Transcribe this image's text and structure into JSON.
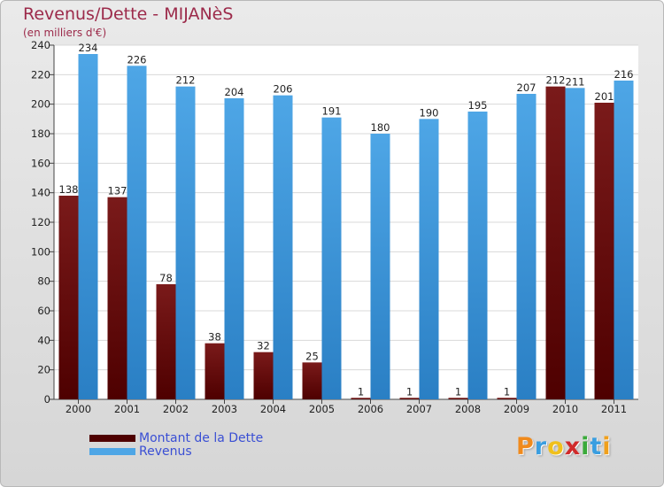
{
  "colors": {
    "debt": "#7a1a1a",
    "debt_dark": "#4e0000",
    "revenue": "#4ea6e6",
    "revenue_dark": "#2a7fc4",
    "title": "#9c2a4a",
    "legend_text": "#3a4fd4"
  },
  "logo": {
    "letters": [
      "P",
      "r",
      "o",
      "x",
      "i",
      "t",
      "i"
    ],
    "colors": [
      "#f08a1c",
      "#3a9ee0",
      "#f0c01c",
      "#d02a2a",
      "#3aaa3a",
      "#3a9ee0",
      "#f0a01c"
    ]
  },
  "chart_data": {
    "type": "bar",
    "title": "Revenus/Dette - MIJANèS",
    "subtitle": "(en milliers d'€)",
    "xlabel": "",
    "ylabel": "",
    "ylim": [
      0,
      240
    ],
    "yticks": [
      0,
      20,
      40,
      60,
      80,
      100,
      120,
      140,
      160,
      180,
      200,
      220,
      240
    ],
    "grid": true,
    "legend_placement": "bottom-left",
    "categories": [
      "2000",
      "2001",
      "2002",
      "2003",
      "2004",
      "2005",
      "2006",
      "2007",
      "2008",
      "2009",
      "2010",
      "2011"
    ],
    "series": [
      {
        "name": "Montant de la Dette",
        "values": [
          138,
          137,
          78,
          38,
          32,
          25,
          1,
          1,
          1,
          1,
          212,
          201
        ]
      },
      {
        "name": "Revenus",
        "values": [
          234,
          226,
          212,
          204,
          206,
          191,
          180,
          190,
          195,
          207,
          211,
          216
        ]
      }
    ]
  }
}
